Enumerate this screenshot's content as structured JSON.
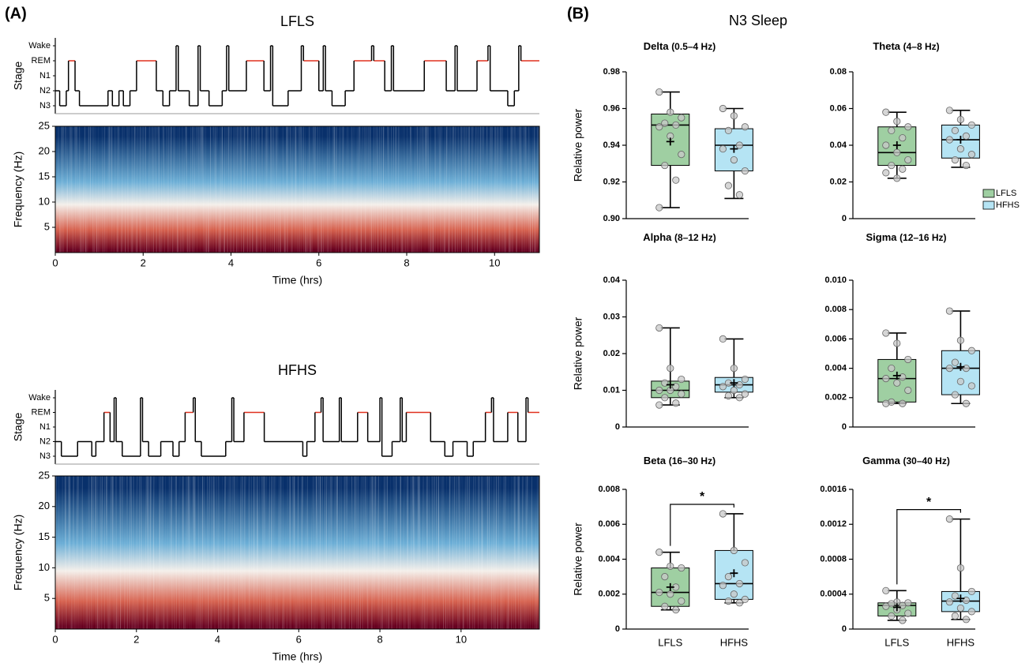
{
  "panel_a_label": "(A)",
  "panel_b_label": "(B)",
  "panel_b_title": "N3 Sleep",
  "chart_data": [
    {
      "type": "hypnogram",
      "title": "LFLS",
      "ylabel": "Stage",
      "ycategories": [
        "N3",
        "N2",
        "N1",
        "REM",
        "Wake"
      ],
      "color": "#000000",
      "highlight_stage": "REM",
      "highlight_color": "#e0301e",
      "xlim": [
        0,
        11.02
      ],
      "x": [
        0,
        0.1,
        0.25,
        0.3,
        0.45,
        0.55,
        1.2,
        1.3,
        1.45,
        1.55,
        1.7,
        1.85,
        2.3,
        2.45,
        2.6,
        2.75,
        2.8,
        3.05,
        3.25,
        3.3,
        3.5,
        3.8,
        3.9,
        3.95,
        4.35,
        4.75,
        4.9,
        4.95,
        5.3,
        5.6,
        5.65,
        6.0,
        6.1,
        6.15,
        6.3,
        6.6,
        6.8,
        7.2,
        7.25,
        7.5,
        7.65,
        7.7,
        8.4,
        8.9,
        9.1,
        9.15,
        9.6,
        9.85,
        9.9,
        10.3,
        10.45,
        10.55,
        10.6,
        11.02
      ],
      "values": [
        "N2",
        "N3",
        "N2",
        "REM",
        "N2",
        "N3",
        "N2",
        "N3",
        "N2",
        "N3",
        "N2",
        "REM",
        "N2",
        "N3",
        "N2",
        "Wake",
        "N2",
        "N3",
        "Wake",
        "N2",
        "N3",
        "N2",
        "Wake",
        "N2",
        "REM",
        "N2",
        "Wake",
        "N3",
        "N2",
        "Wake",
        "REM",
        "N2",
        "Wake",
        "N2",
        "N3",
        "N2",
        "REM",
        "Wake",
        "REM",
        "N2",
        "Wake",
        "N2",
        "REM",
        "N2",
        "Wake",
        "N2",
        "REM",
        "Wake",
        "N2",
        "N3",
        "N2",
        "Wake",
        "REM",
        "REM"
      ]
    },
    {
      "type": "spectrogram",
      "xlabel": "Time (hrs)",
      "ylabel": "Frequency (Hz)",
      "xlim": [
        0,
        11.02
      ],
      "xticks": [
        0,
        2,
        4,
        6,
        8,
        10
      ],
      "ylim": [
        0,
        25
      ],
      "yticks": [
        5,
        10,
        15,
        20,
        25
      ],
      "colormap": [
        "#67001f",
        "#d6604d",
        "#f4efea",
        "#6baed6",
        "#08306b"
      ]
    },
    {
      "type": "hypnogram",
      "title": "HFHS",
      "ylabel": "Stage",
      "ycategories": [
        "N3",
        "N2",
        "N1",
        "REM",
        "Wake"
      ],
      "color": "#000000",
      "highlight_stage": "REM",
      "highlight_color": "#e0301e",
      "xlim": [
        0,
        11.93
      ],
      "x": [
        0,
        0.15,
        0.55,
        0.9,
        1.0,
        1.2,
        1.35,
        1.45,
        1.5,
        1.65,
        2.1,
        2.15,
        2.3,
        2.6,
        2.9,
        3.05,
        3.2,
        3.4,
        3.45,
        3.6,
        4.2,
        4.35,
        4.4,
        4.65,
        5.15,
        6.1,
        6.2,
        6.4,
        6.55,
        6.6,
        7.0,
        7.05,
        7.45,
        7.7,
        8.0,
        8.05,
        8.3,
        8.5,
        8.55,
        8.65,
        9.25,
        9.6,
        9.8,
        10.15,
        10.3,
        10.6,
        10.75,
        10.8,
        11.15,
        11.4,
        11.6,
        11.65,
        11.93
      ],
      "values": [
        "N2",
        "N3",
        "N2",
        "N3",
        "N2",
        "REM",
        "N2",
        "Wake",
        "N2",
        "N3",
        "Wake",
        "N2",
        "N3",
        "N2",
        "N3",
        "N2",
        "REM",
        "Wake",
        "N2",
        "N3",
        "N2",
        "Wake",
        "N2",
        "REM",
        "N2",
        "N3",
        "N2",
        "REM",
        "Wake",
        "N2",
        "Wake",
        "N2",
        "REM",
        "N2",
        "Wake",
        "N3",
        "N2",
        "Wake",
        "N2",
        "REM",
        "N2",
        "N3",
        "N2",
        "N3",
        "N2",
        "REM",
        "Wake",
        "N2",
        "REM",
        "N2",
        "Wake",
        "REM",
        "REM"
      ]
    },
    {
      "type": "spectrogram",
      "xlabel": "Time (hrs)",
      "ylabel": "Frequency (Hz)",
      "xlim": [
        0,
        11.93
      ],
      "xticks": [
        0,
        2,
        4,
        6,
        8,
        10
      ],
      "ylim": [
        0,
        25
      ],
      "yticks": [
        5,
        10,
        15,
        20,
        25
      ],
      "colormap": [
        "#67001f",
        "#d6604d",
        "#f4efea",
        "#6baed6",
        "#08306b"
      ]
    },
    {
      "type": "box",
      "title": "Delta",
      "subtitle": "(0.5–4 Hz)",
      "ylabel": "Relative power",
      "ylim": [
        0.9,
        0.98
      ],
      "yticks": [
        {
          "value": 0.9,
          "label": "0.90"
        },
        0.92,
        0.94,
        0.96,
        0.98
      ],
      "boxes": [
        {
          "color": "#9fcfa2",
          "min": 0.906,
          "q1": 0.929,
          "median": 0.951,
          "q3": 0.957,
          "max": 0.969,
          "mean": 0.942,
          "points": [
            0.969,
            0.958,
            0.955,
            0.952,
            0.951,
            0.95,
            0.945,
            0.935,
            0.929,
            0.921,
            0.906
          ]
        },
        {
          "color": "#b5e4f4",
          "min": 0.911,
          "q1": 0.926,
          "median": 0.94,
          "q3": 0.949,
          "max": 0.96,
          "mean": 0.938,
          "points": [
            0.96,
            0.956,
            0.95,
            0.948,
            0.94,
            0.938,
            0.932,
            0.926,
            0.918,
            0.913
          ]
        }
      ]
    },
    {
      "type": "box",
      "title": "Theta",
      "subtitle": "(4–8 Hz)",
      "ylim": [
        0,
        0.08
      ],
      "yticks": [
        0,
        0.02,
        0.04,
        0.06,
        0.08
      ],
      "legend": [
        {
          "name": "LFLS",
          "color": "#9fcfa2"
        },
        {
          "name": "HFHS",
          "color": "#b5e4f4"
        }
      ],
      "boxes": [
        {
          "color": "#9fcfa2",
          "min": 0.022,
          "q1": 0.029,
          "median": 0.036,
          "q3": 0.05,
          "max": 0.058,
          "mean": 0.04,
          "points": [
            0.058,
            0.053,
            0.05,
            0.048,
            0.044,
            0.04,
            0.036,
            0.032,
            0.029,
            0.027,
            0.025,
            0.022
          ]
        },
        {
          "color": "#b5e4f4",
          "min": 0.028,
          "q1": 0.033,
          "median": 0.043,
          "q3": 0.051,
          "max": 0.059,
          "mean": 0.043,
          "points": [
            0.059,
            0.054,
            0.051,
            0.048,
            0.045,
            0.043,
            0.038,
            0.035,
            0.032,
            0.029
          ]
        }
      ]
    },
    {
      "type": "box",
      "title": "Alpha",
      "subtitle": "(8–12 Hz)",
      "ylabel": "Relative power",
      "ylim": [
        0,
        0.04
      ],
      "yticks": [
        0,
        0.01,
        0.02,
        0.03,
        0.04
      ],
      "boxes": [
        {
          "color": "#9fcfa2",
          "min": 0.006,
          "q1": 0.008,
          "median": 0.01,
          "q3": 0.0125,
          "max": 0.027,
          "mean": 0.0115,
          "points": [
            0.027,
            0.016,
            0.013,
            0.012,
            0.011,
            0.01,
            0.01,
            0.009,
            0.008,
            0.0065,
            0.006
          ]
        },
        {
          "color": "#b5e4f4",
          "min": 0.008,
          "q1": 0.0095,
          "median": 0.0115,
          "q3": 0.0135,
          "max": 0.024,
          "mean": 0.012,
          "points": [
            0.024,
            0.016,
            0.013,
            0.012,
            0.0115,
            0.011,
            0.01,
            0.009,
            0.0085,
            0.008
          ]
        }
      ]
    },
    {
      "type": "box",
      "title": "Sigma",
      "subtitle": "(12–16 Hz)",
      "ylim": [
        0,
        0.01
      ],
      "yticks": [
        0,
        0.002,
        0.004,
        0.006,
        0.008,
        {
          "value": 0.01,
          "label": "0.010"
        }
      ],
      "boxes": [
        {
          "color": "#9fcfa2",
          "min": 0.0016,
          "q1": 0.0017,
          "median": 0.0033,
          "q3": 0.0046,
          "max": 0.0064,
          "mean": 0.0035,
          "points": [
            0.0064,
            0.0057,
            0.0046,
            0.004,
            0.0034,
            0.0033,
            0.003,
            0.0025,
            0.0017,
            0.0016,
            0.0016
          ]
        },
        {
          "color": "#b5e4f4",
          "min": 0.0016,
          "q1": 0.0022,
          "median": 0.004,
          "q3": 0.0052,
          "max": 0.0079,
          "mean": 0.0041,
          "points": [
            0.0079,
            0.0059,
            0.0052,
            0.0044,
            0.004,
            0.004,
            0.0031,
            0.0028,
            0.0022,
            0.0016
          ]
        }
      ]
    },
    {
      "type": "box",
      "title": "Beta",
      "subtitle": "(16–30 Hz)",
      "ylabel": "Relative power",
      "ylim": [
        0,
        0.008
      ],
      "yticks": [
        0,
        0.002,
        0.004,
        0.006,
        0.008
      ],
      "categories": [
        "LFLS",
        "HFHS"
      ],
      "significance": "*",
      "boxes": [
        {
          "color": "#9fcfa2",
          "min": 0.0011,
          "q1": 0.0013,
          "median": 0.0021,
          "q3": 0.0035,
          "max": 0.0044,
          "mean": 0.0024,
          "points": [
            0.0044,
            0.0036,
            0.0035,
            0.003,
            0.0024,
            0.0021,
            0.002,
            0.0016,
            0.0013,
            0.0011
          ]
        },
        {
          "color": "#b5e4f4",
          "min": 0.0015,
          "q1": 0.0017,
          "median": 0.0026,
          "q3": 0.0045,
          "max": 0.0066,
          "mean": 0.0032,
          "points": [
            0.0066,
            0.0045,
            0.0038,
            0.003,
            0.0026,
            0.0025,
            0.002,
            0.0017,
            0.0016,
            0.0015
          ]
        }
      ]
    },
    {
      "type": "box",
      "title": "Gamma",
      "subtitle": "(30–40 Hz)",
      "ylim": [
        0,
        0.0016
      ],
      "yticks": [
        0,
        0.0004,
        0.0008,
        0.0012,
        0.0016
      ],
      "categories": [
        "LFLS",
        "HFHS"
      ],
      "significance": "*",
      "boxes": [
        {
          "color": "#9fcfa2",
          "min": 0.0001,
          "q1": 0.00015,
          "median": 0.00027,
          "q3": 0.0003,
          "max": 0.00044,
          "mean": 0.00025,
          "points": [
            0.00044,
            0.00031,
            0.0003,
            0.00029,
            0.00027,
            0.00026,
            0.00022,
            0.00018,
            0.00015,
            0.0001
          ]
        },
        {
          "color": "#b5e4f4",
          "min": 0.00011,
          "q1": 0.0002,
          "median": 0.00032,
          "q3": 0.00043,
          "max": 0.00126,
          "mean": 0.00035,
          "points": [
            0.00126,
            0.0007,
            0.00043,
            0.00038,
            0.00033,
            0.00031,
            0.00024,
            0.0002,
            0.00015,
            0.00011
          ]
        }
      ]
    }
  ]
}
